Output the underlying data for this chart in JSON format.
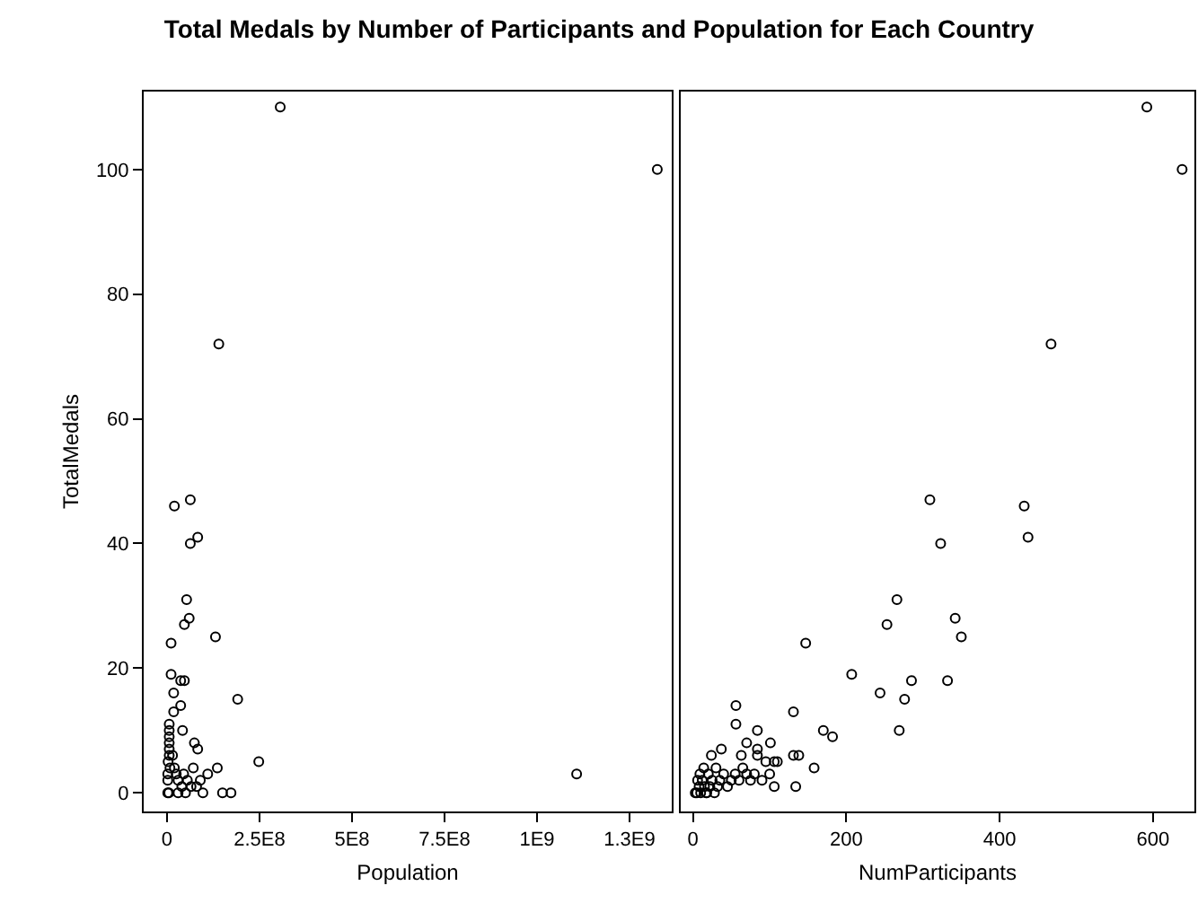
{
  "chart_data": [
    {
      "type": "scatter",
      "title": "Total Medals by Number of Participants and Population for Each Country",
      "xlabel": "Population",
      "ylabel": "TotalMedals",
      "marker": "circle",
      "color": "#000000",
      "x": [
        306000000.0,
        1325000000.0,
        140000000.0,
        63000000.0,
        20000000.0,
        83000000.0,
        63000000.0,
        53000000.0,
        60000000.0,
        47000000.0,
        131000000.0,
        11000000.0,
        11000000.0,
        37000000.0,
        47000000.0,
        18000000.0,
        191000000.0,
        37000000.0,
        18000000.0,
        6000000.0,
        42000000.0,
        6000000.0,
        74000000.0,
        83000000.0,
        6000000.0,
        6000000.0,
        6000000.0,
        6000000.0,
        15000000.0,
        248000000.0,
        136000000.0,
        110000000.0,
        71000000.0,
        150000000.0,
        173000000.0,
        97000000.0,
        1107000000.0,
        2000000.0,
        30000000.0,
        40000000.0,
        55000000.0,
        80000000.0,
        20000000.0,
        25000000.0,
        50000000.0,
        65000000.0,
        90000000.0,
        5000000.0,
        2000000.0,
        3000000.0,
        8000000.0,
        30000000.0,
        45000000.0,
        2000000.0
      ],
      "values": [
        110,
        100,
        72,
        47,
        46,
        41,
        40,
        31,
        28,
        27,
        25,
        24,
        19,
        18,
        18,
        16,
        15,
        14,
        13,
        11,
        10,
        10,
        8,
        7,
        9,
        8,
        7,
        6,
        6,
        5,
        4,
        3,
        4,
        0,
        0,
        0,
        3,
        0,
        2,
        1,
        2,
        1,
        4,
        3,
        0,
        1,
        2,
        0,
        3,
        5,
        4,
        0,
        3,
        2
      ],
      "xlim": [
        -63000000.0,
        1364000000.0
      ],
      "xticks": [
        0,
        {
          "value": 250000000.0,
          "label": "2.5E8"
        },
        {
          "value": 500000000.0,
          "label": "5E8"
        },
        {
          "value": 750000000.0,
          "label": "7.5E8"
        },
        {
          "value": 1000000000.0,
          "label": "1E9"
        },
        {
          "value": 1250000000.0,
          "label": "1.3E9"
        }
      ],
      "ylim": [
        -3,
        112.5
      ],
      "yticks": [
        0,
        20,
        40,
        60,
        80,
        100
      ]
    },
    {
      "type": "scatter",
      "xlabel": "NumParticipants",
      "marker": "circle",
      "color": "#000000",
      "tick_labels": "x",
      "x": [
        592,
        638,
        467,
        309,
        432,
        437,
        323,
        266,
        342,
        253,
        350,
        147,
        207,
        285,
        332,
        244,
        276,
        56,
        131,
        56,
        84,
        170,
        182,
        269,
        101,
        70,
        37,
        24,
        63,
        84,
        84,
        131,
        138,
        158,
        95,
        106,
        106,
        134,
        5,
        8,
        10,
        12,
        15,
        18,
        20,
        22,
        25,
        28,
        30,
        32,
        35,
        40,
        45,
        50,
        55,
        60,
        65,
        70,
        75,
        80,
        90,
        100,
        110,
        3,
        6,
        9,
        14,
        17
      ],
      "values": [
        110,
        100,
        72,
        47,
        46,
        41,
        40,
        31,
        28,
        27,
        25,
        24,
        19,
        18,
        18,
        16,
        15,
        14,
        13,
        11,
        10,
        10,
        9,
        10,
        8,
        8,
        7,
        6,
        6,
        7,
        6,
        6,
        6,
        4,
        5,
        5,
        1,
        1,
        0,
        1,
        0,
        2,
        1,
        0,
        3,
        1,
        2,
        0,
        4,
        1,
        2,
        3,
        1,
        2,
        3,
        2,
        4,
        3,
        2,
        3,
        2,
        3,
        5,
        0,
        2,
        3,
        4,
        0
      ],
      "xlim": [
        -16,
        654
      ],
      "xticks": [
        0,
        200,
        400,
        600
      ],
      "ylim": [
        -3,
        112.5
      ],
      "yticks": [
        0,
        20,
        40,
        60,
        80,
        100
      ]
    }
  ]
}
